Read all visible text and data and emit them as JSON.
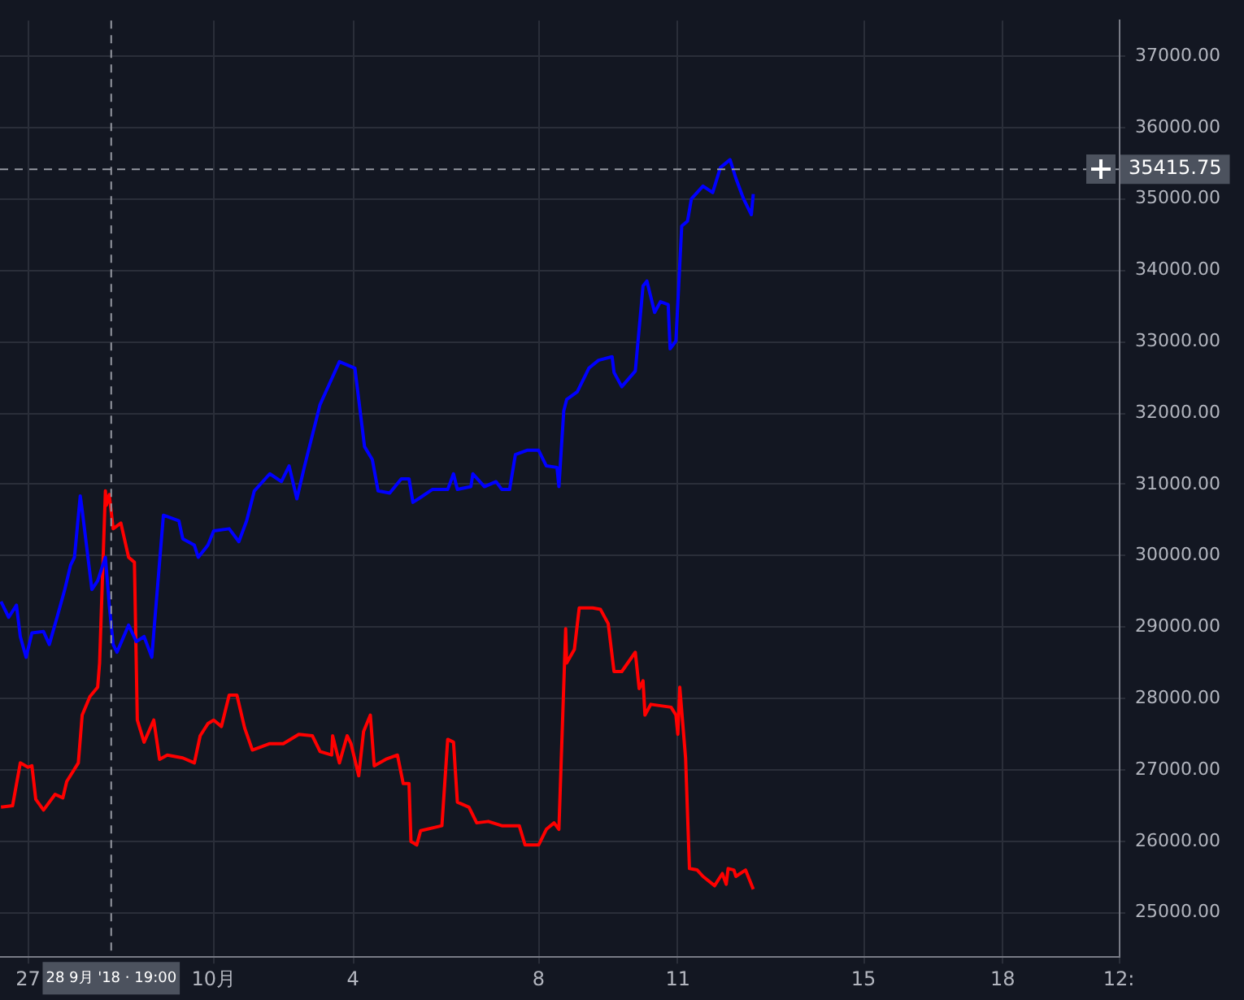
{
  "chart_data": {
    "type": "line",
    "xlim": [
      "2018-09-26T09:30",
      "2018-10-20T12:00"
    ],
    "ylim": [
      24380,
      37500
    ],
    "xticks": [
      {
        "value": "2018-09-27",
        "label": "27"
      },
      {
        "value": "2018-10-01",
        "label": "10月"
      },
      {
        "value": "2018-10-04",
        "label": "4"
      },
      {
        "value": "2018-10-08",
        "label": "8"
      },
      {
        "value": "2018-10-11",
        "label": "11"
      },
      {
        "value": "2018-10-15",
        "label": "15"
      },
      {
        "value": "2018-10-18",
        "label": "18"
      },
      {
        "value": "2018-10-20T12:00",
        "label": "12:"
      }
    ],
    "yticks": [
      {
        "value": 25000,
        "label": "25000.00"
      },
      {
        "value": 26000,
        "label": "26000.00"
      },
      {
        "value": 27000,
        "label": "27000.00"
      },
      {
        "value": 28000,
        "label": "28000.00"
      },
      {
        "value": 29000,
        "label": "29000.00"
      },
      {
        "value": 30000,
        "label": "30000.00"
      },
      {
        "value": 31000,
        "label": "31000.00"
      },
      {
        "value": 32000,
        "label": "32000.00"
      },
      {
        "value": 33000,
        "label": "33000.00"
      },
      {
        "value": 34000,
        "label": "34000.00"
      },
      {
        "value": 35000,
        "label": "35000.00"
      },
      {
        "value": 36000,
        "label": "36000.00"
      },
      {
        "value": 37000,
        "label": "37000.00"
      }
    ],
    "grid": true,
    "legend": false,
    "marker": "none",
    "line_style": "solid",
    "ref_lines": [
      {
        "axis": "x",
        "value": "2018-09-28T19:00",
        "label": "28 9月 '18 · 19:00",
        "color": "#9598a1",
        "line_style": "dashed"
      },
      {
        "axis": "y",
        "value": 35415.75,
        "label": "35415.75",
        "color": "#9598a1",
        "line_style": "dashed"
      }
    ],
    "series": [
      {
        "color": "#0000ff",
        "x": [
          "2018-09-26T10:00",
          "2018-09-26T14:00",
          "2018-09-26T18:00",
          "2018-09-26T20:00",
          "2018-09-26T23:00",
          "2018-09-27T02:00",
          "2018-09-27T08:00",
          "2018-09-27T11:00",
          "2018-09-27T15:00",
          "2018-09-27T19:00",
          "2018-09-27T22:00",
          "2018-09-28T00:00",
          "2018-09-28T03:00",
          "2018-09-28T04:00",
          "2018-09-28T09:00",
          "2018-09-28T12:00",
          "2018-09-28T16:00",
          "2018-09-28T18:00",
          "2018-09-28T20:00",
          "2018-09-28T22:00",
          "2018-09-29T04:00",
          "2018-09-29T08:00",
          "2018-09-29T12:00",
          "2018-09-29T16:00",
          "2018-09-29T18:00",
          "2018-09-29T22:00",
          "2018-09-30T06:00",
          "2018-09-30T08:00",
          "2018-09-30T14:00",
          "2018-09-30T16:00",
          "2018-09-30T21:00",
          "2018-10-01T00:00",
          "2018-10-01T08:00",
          "2018-10-01T13:00",
          "2018-10-01T17:00",
          "2018-10-01T21:00",
          "2018-10-02T05:00",
          "2018-10-02T11:00",
          "2018-10-02T15:00",
          "2018-10-02T19:00",
          "2018-10-02T23:00",
          "2018-10-03T07:00",
          "2018-10-03T13:00",
          "2018-10-03T17:00",
          "2018-10-04T01:00",
          "2018-10-04T03:00",
          "2018-10-04T06:00",
          "2018-10-04T10:00",
          "2018-10-04T13:00",
          "2018-10-04T19:00",
          "2018-10-05T01:00",
          "2018-10-05T05:00",
          "2018-10-05T07:00",
          "2018-10-05T11:00",
          "2018-10-05T17:00",
          "2018-10-06T01:00",
          "2018-10-06T04:00",
          "2018-10-06T06:00",
          "2018-10-06T13:00",
          "2018-10-06T14:00",
          "2018-10-06T20:00",
          "2018-10-07T02:00",
          "2018-10-07T05:00",
          "2018-10-07T09:00",
          "2018-10-07T12:00",
          "2018-10-07T18:00",
          "2018-10-08T00:00",
          "2018-10-08T04:00",
          "2018-10-08T09:30",
          "2018-10-08T10:30",
          "2018-10-08T13:00",
          "2018-10-08T14:30",
          "2018-10-08T20:00",
          "2018-10-09T02:00",
          "2018-10-09T07:00",
          "2018-10-09T14:00",
          "2018-10-09T15:00",
          "2018-10-09T19:00",
          "2018-10-10T02:00",
          "2018-10-10T06:00",
          "2018-10-10T08:00",
          "2018-10-10T12:00",
          "2018-10-10T15:00",
          "2018-10-10T19:00",
          "2018-10-10T20:00",
          "2018-10-10T23:00",
          "2018-10-11T02:00",
          "2018-10-11T05:00",
          "2018-10-11T07:00",
          "2018-10-11T13:00",
          "2018-10-11T18:00",
          "2018-10-11T22:00",
          "2018-10-12T03:00",
          "2018-10-12T06:00",
          "2018-10-12T10:00",
          "2018-10-12T14:00",
          "2018-10-12T15:00"
        ],
        "values": [
          29360,
          29140,
          29310,
          28870,
          28580,
          28920,
          28940,
          28760,
          29140,
          29530,
          29870,
          29980,
          30840,
          30640,
          29530,
          29650,
          29980,
          29310,
          28760,
          28650,
          29030,
          28800,
          28870,
          28580,
          29250,
          30570,
          30490,
          30240,
          30150,
          29980,
          30150,
          30350,
          30380,
          30200,
          30490,
          30910,
          31150,
          31040,
          31260,
          30800,
          31260,
          32120,
          32480,
          32720,
          32630,
          32190,
          31530,
          31350,
          30910,
          30880,
          31080,
          31080,
          30750,
          30820,
          30930,
          30930,
          31150,
          30930,
          30970,
          31150,
          30970,
          31040,
          30930,
          30930,
          31420,
          31480,
          31480,
          31260,
          31240,
          30970,
          32030,
          32190,
          32300,
          32630,
          32740,
          32790,
          32570,
          32370,
          32590,
          33780,
          33850,
          33410,
          33560,
          33520,
          32900,
          33010,
          34620,
          34690,
          35000,
          35180,
          35090,
          35440,
          35550,
          35290,
          35000,
          34780,
          35070
        ]
      },
      {
        "color": "#ff0000",
        "x": [
          "2018-09-26T10:00",
          "2018-09-26T16:00",
          "2018-09-26T20:00",
          "2018-09-27T00:00",
          "2018-09-27T02:00",
          "2018-09-27T04:00",
          "2018-09-27T08:00",
          "2018-09-27T14:00",
          "2018-09-27T18:00",
          "2018-09-27T20:00",
          "2018-09-28T02:00",
          "2018-09-28T04:00",
          "2018-09-28T08:00",
          "2018-09-28T12:00",
          "2018-09-28T13:00",
          "2018-09-28T16:00",
          "2018-09-28T16:30",
          "2018-09-28T18:00",
          "2018-09-28T20:00",
          "2018-09-29T00:00",
          "2018-09-29T04:00",
          "2018-09-29T07:00",
          "2018-09-29T08:30",
          "2018-09-29T12:00",
          "2018-09-29T17:00",
          "2018-09-29T20:00",
          "2018-09-30T00:00",
          "2018-09-30T08:00",
          "2018-09-30T14:00",
          "2018-09-30T17:00",
          "2018-09-30T21:00",
          "2018-10-01T00:00",
          "2018-10-01T04:00",
          "2018-10-01T08:00",
          "2018-10-01T12:00",
          "2018-10-01T16:00",
          "2018-10-01T20:00",
          "2018-10-02T05:00",
          "2018-10-02T12:00",
          "2018-10-02T20:00",
          "2018-10-03T03:00",
          "2018-10-03T07:00",
          "2018-10-03T13:00",
          "2018-10-03T13:30",
          "2018-10-03T17:00",
          "2018-10-03T21:00",
          "2018-10-03T23:00",
          "2018-10-04T03:00",
          "2018-10-04T05:30",
          "2018-10-04T09:00",
          "2018-10-04T11:00",
          "2018-10-04T17:00",
          "2018-10-04T23:00",
          "2018-10-05T02:00",
          "2018-10-05T05:00",
          "2018-10-05T06:00",
          "2018-10-05T09:00",
          "2018-10-05T11:00",
          "2018-10-05T22:00",
          "2018-10-06T01:00",
          "2018-10-06T04:00",
          "2018-10-06T06:00",
          "2018-10-06T12:00",
          "2018-10-06T16:00",
          "2018-10-06T22:00",
          "2018-10-07T05:00",
          "2018-10-07T14:00",
          "2018-10-07T17:00",
          "2018-10-08T00:00",
          "2018-10-08T04:00",
          "2018-10-08T08:00",
          "2018-10-08T10:30",
          "2018-10-08T14:00",
          "2018-10-08T14:30",
          "2018-10-08T18:30",
          "2018-10-08T21:00",
          "2018-10-09T04:00",
          "2018-10-09T08:00",
          "2018-10-09T12:00",
          "2018-10-09T15:00",
          "2018-10-09T19:00",
          "2018-10-10T02:00",
          "2018-10-10T04:00",
          "2018-10-10T06:00",
          "2018-10-10T07:00",
          "2018-10-10T10:00",
          "2018-10-10T20:30",
          "2018-10-10T23:00",
          "2018-10-11T00:00",
          "2018-10-11T01:00",
          "2018-10-11T04:00",
          "2018-10-11T06:00",
          "2018-10-11T10:00",
          "2018-10-11T13:00",
          "2018-10-11T19:00",
          "2018-10-11T23:00",
          "2018-10-12T01:00",
          "2018-10-12T02:00",
          "2018-10-12T05:00",
          "2018-10-12T06:00",
          "2018-10-12T11:00",
          "2018-10-12T15:00"
        ],
        "values": [
          26480,
          26500,
          27100,
          27040,
          27060,
          26590,
          26440,
          26660,
          26610,
          26840,
          27100,
          27770,
          28030,
          28160,
          28500,
          30910,
          30710,
          30860,
          30380,
          30460,
          29980,
          29910,
          27700,
          27390,
          27700,
          27150,
          27210,
          27170,
          27100,
          27480,
          27650,
          27700,
          27610,
          28050,
          28050,
          27590,
          27280,
          27370,
          27370,
          27500,
          27480,
          27260,
          27210,
          27480,
          27100,
          27480,
          27370,
          26920,
          27540,
          27770,
          27060,
          27150,
          27210,
          26810,
          26810,
          26000,
          25950,
          26150,
          26220,
          27430,
          27390,
          26550,
          26480,
          26260,
          26280,
          26220,
          26220,
          25950,
          25950,
          26170,
          26260,
          26170,
          28980,
          28500,
          28690,
          29270,
          29270,
          29250,
          29050,
          28380,
          28380,
          28650,
          28140,
          28250,
          27770,
          27920,
          27880,
          27770,
          27500,
          28160,
          27170,
          25620,
          25600,
          25510,
          25380,
          25550,
          25400,
          25620,
          25600,
          25510,
          25600,
          25330
        ]
      }
    ]
  }
}
